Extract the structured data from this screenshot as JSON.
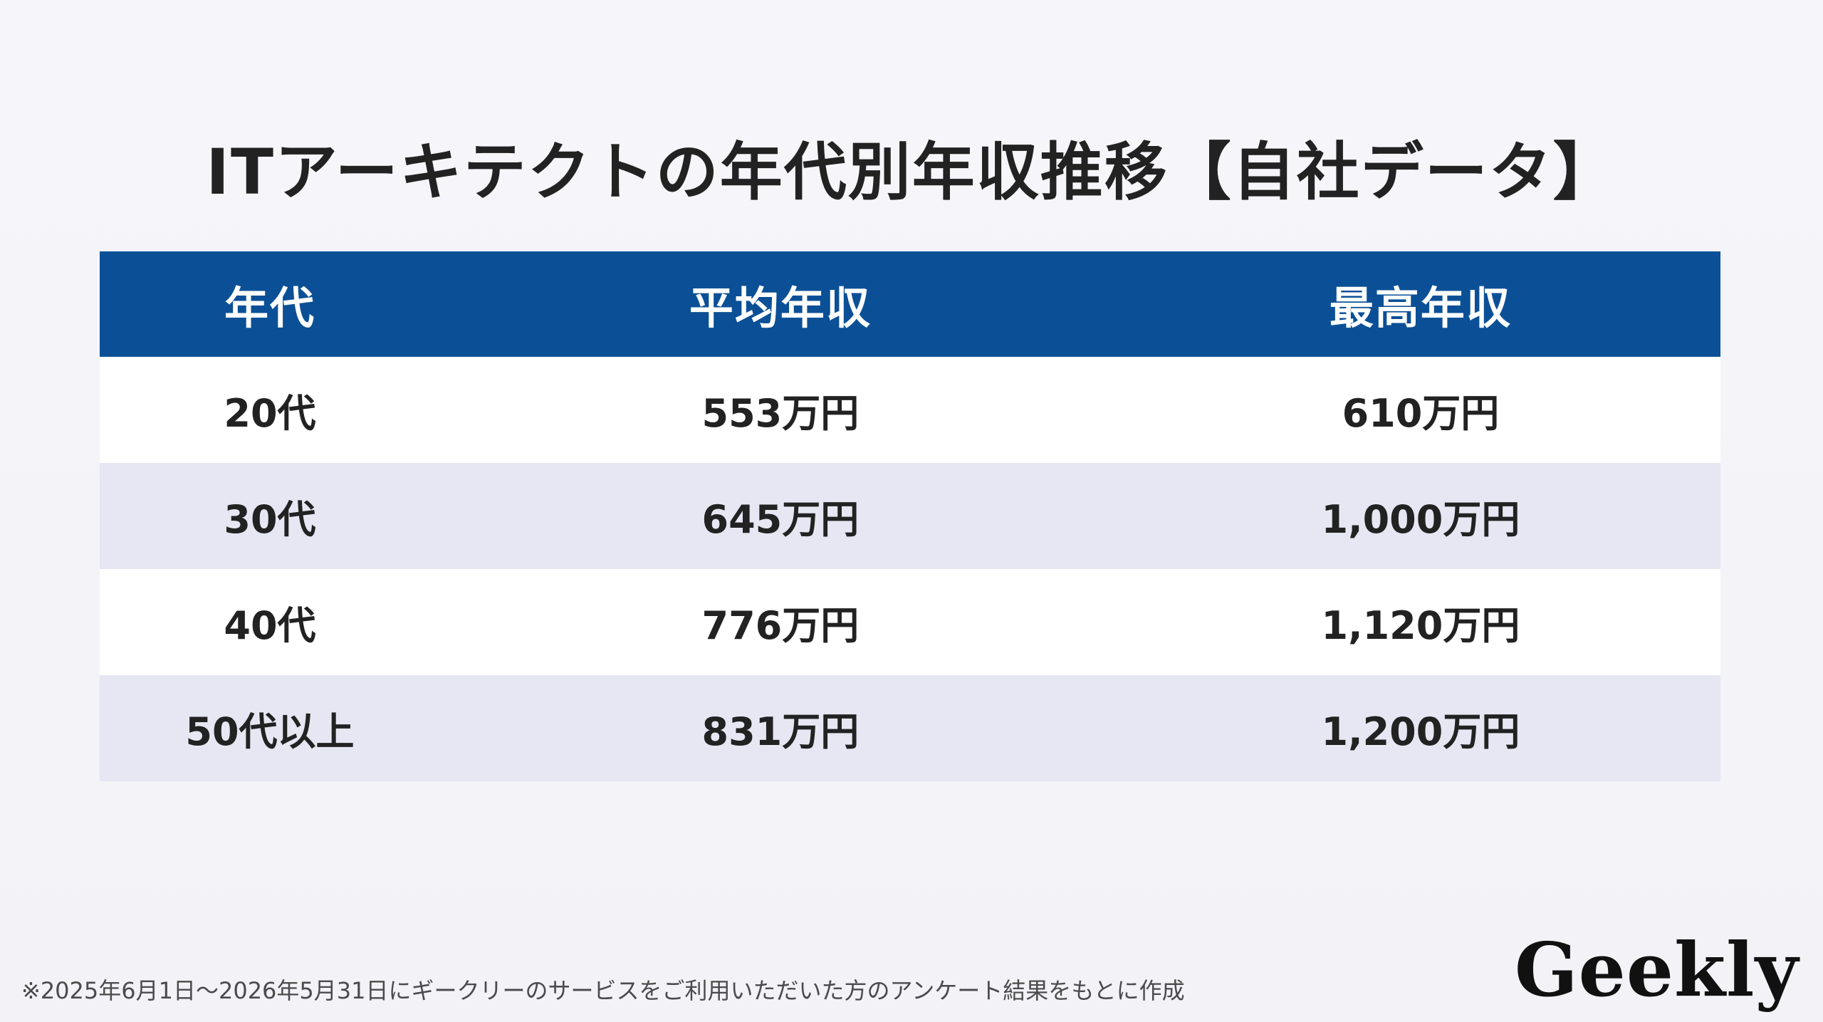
{
  "title": "ITアーキテクトの年代別年収推移【自社データ】",
  "table": {
    "headers": [
      "年代",
      "平均年収",
      "最高年収"
    ],
    "rows": [
      [
        "20代",
        "553万円",
        "610万円"
      ],
      [
        "30代",
        "645万円",
        "1,000万円"
      ],
      [
        "40代",
        "776万円",
        "1,120万円"
      ],
      [
        "50代以上",
        "831万円",
        "1,200万円"
      ]
    ]
  },
  "footnote": "※2025年6月1日～2026年5月31日にギークリーのサービスをご利用いただいた方のアンケート結果をもとに作成",
  "logo_text": "Geekly",
  "colors": {
    "header_bg": "#0b5096",
    "row_alt_bg": "#e6e7f2",
    "row_bg": "#ffffff",
    "page_bg": "#f3f3f8"
  }
}
